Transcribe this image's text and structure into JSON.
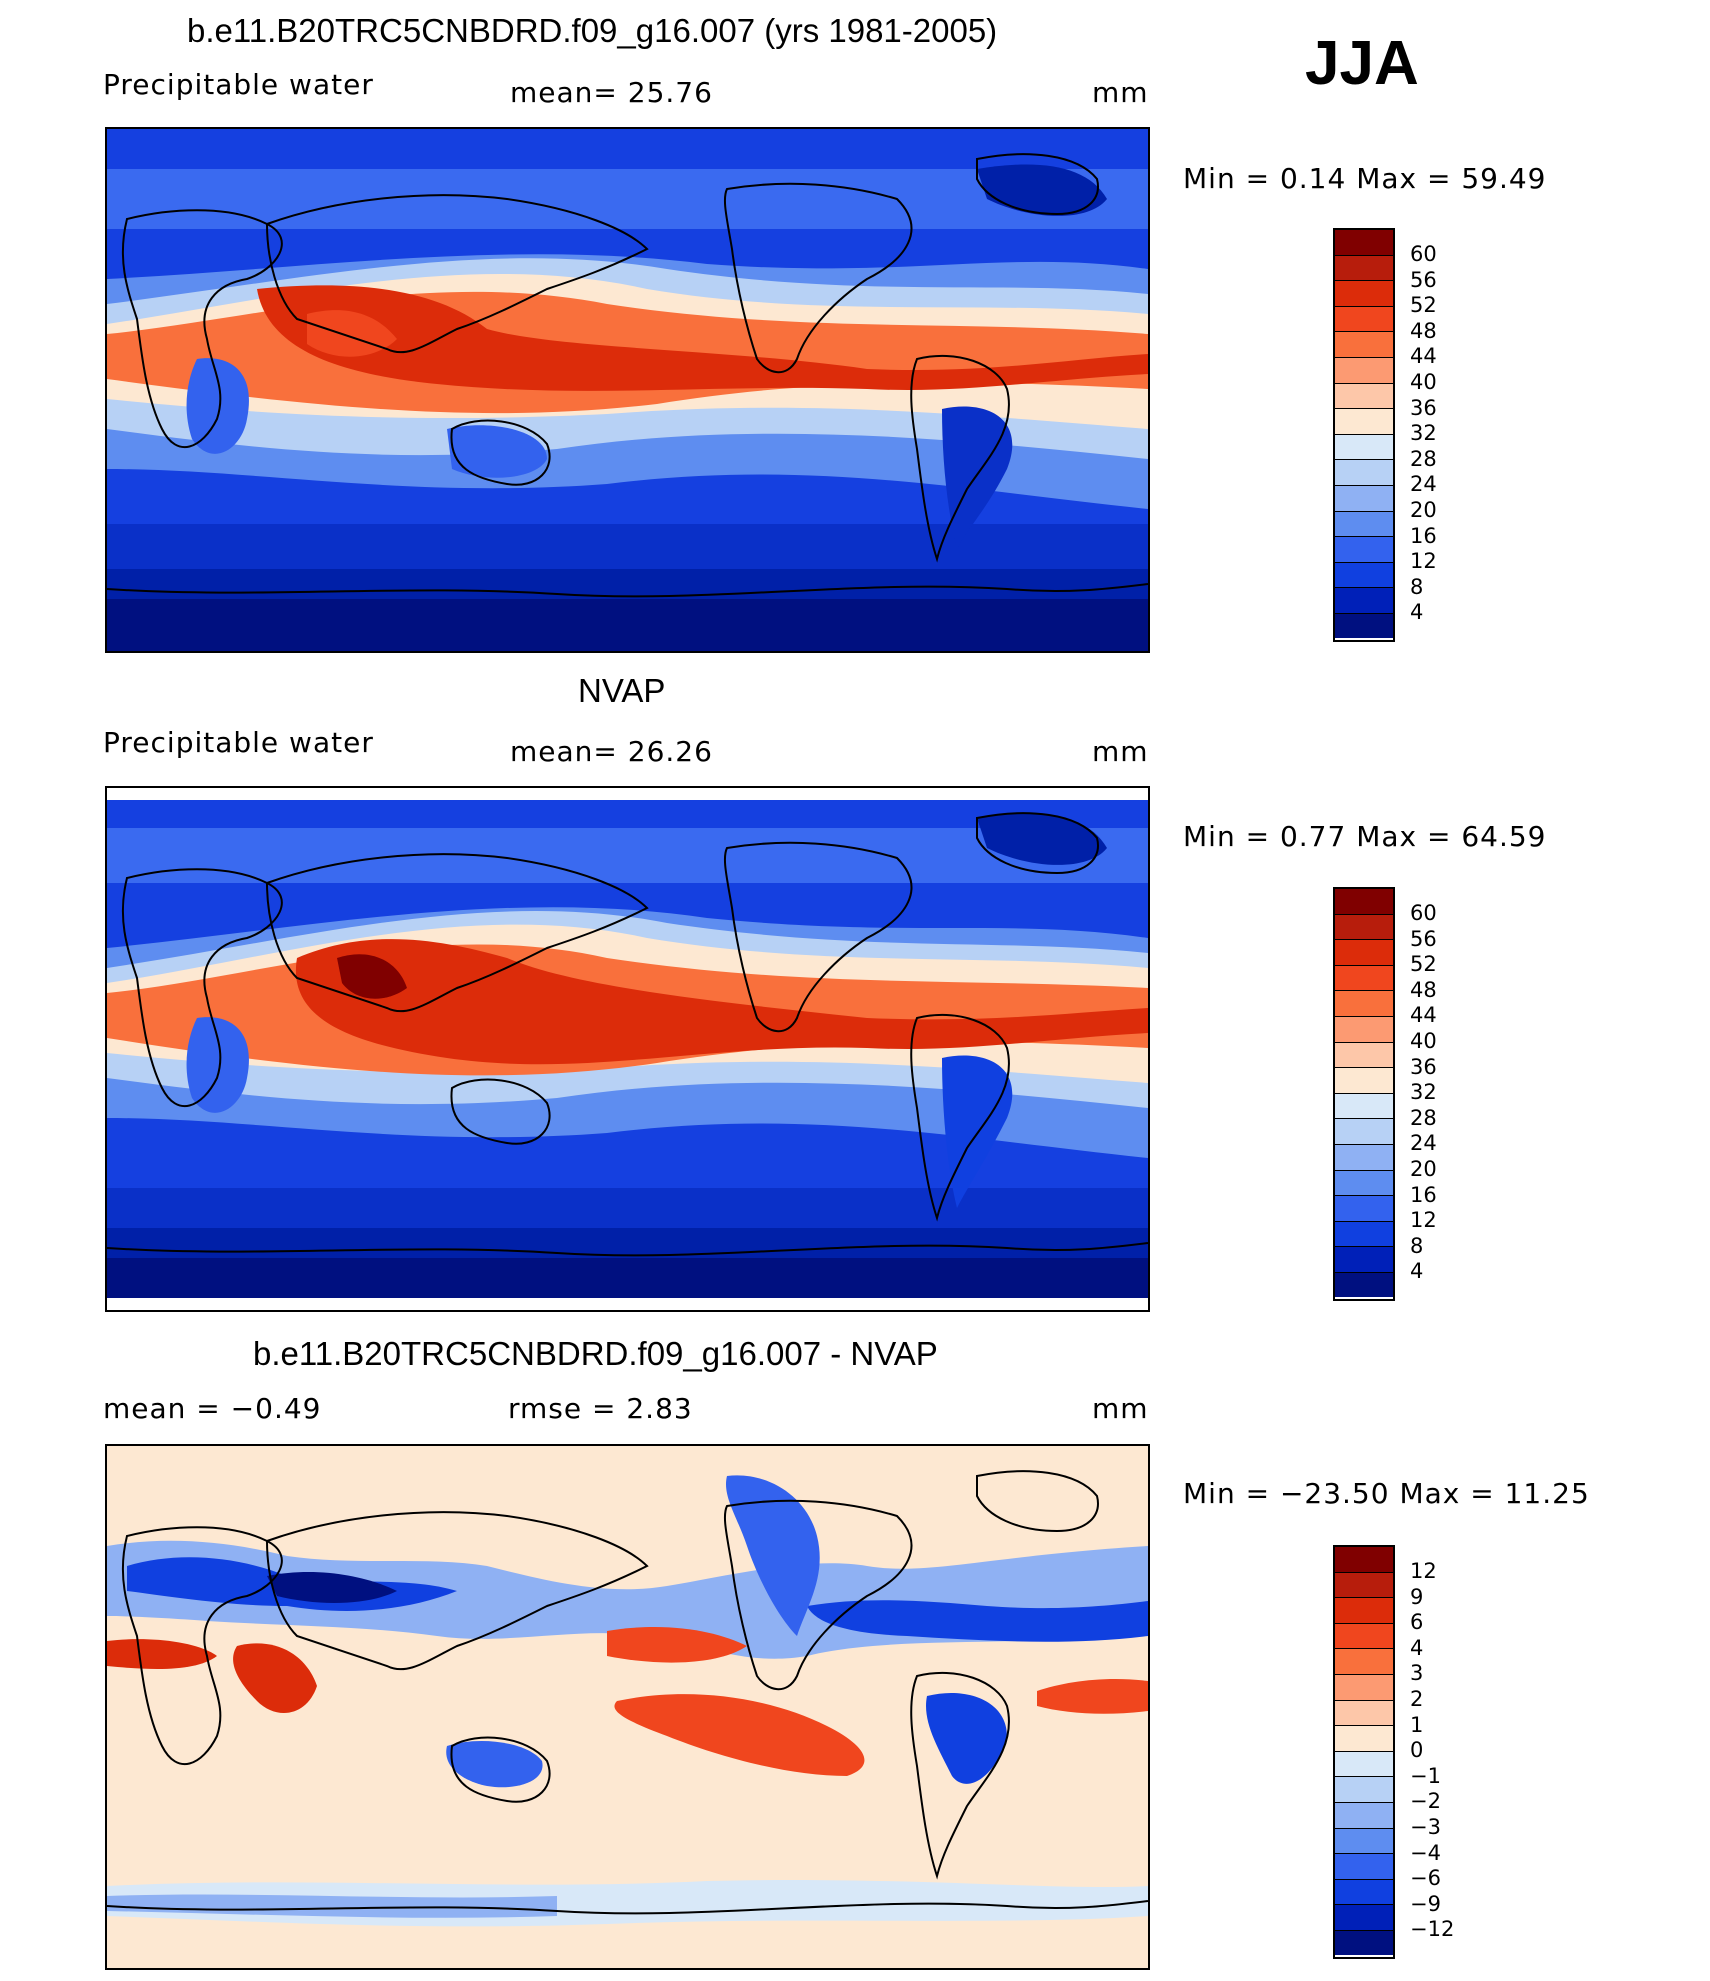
{
  "season": "JJA",
  "panels": [
    {
      "title": "b.e11.B20TRC5CNBDRD.f09_g16.007 (yrs 1981-2005)",
      "left_label": "Precipitable  water",
      "center_label": "mean=   25.76",
      "units": "mm",
      "minmax": "Min  =     0.14  Max  =    59.49",
      "colorbar_labels": [
        "60",
        "56",
        "52",
        "48",
        "44",
        "40",
        "36",
        "32",
        "28",
        "24",
        "20",
        "16",
        "12",
        "8",
        "4"
      ],
      "colors": [
        "#800000",
        "#b71d0c",
        "#dc2c0a",
        "#f0461e",
        "#f9703c",
        "#fc9a72",
        "#fdc7a9",
        "#fde8d2",
        "#d8e8f8",
        "#b7d1f5",
        "#8fb1f3",
        "#5e8df0",
        "#3362ee",
        "#1040e0",
        "#0020b8",
        "#001080"
      ]
    },
    {
      "title": "NVAP",
      "left_label": "Precipitable  water",
      "center_label": "mean=   26.26",
      "units": "mm",
      "minmax": "Min  =     0.77  Max  =    64.59",
      "colorbar_labels": [
        "60",
        "56",
        "52",
        "48",
        "44",
        "40",
        "36",
        "32",
        "28",
        "24",
        "20",
        "16",
        "12",
        "8",
        "4"
      ],
      "colors": [
        "#800000",
        "#b71d0c",
        "#dc2c0a",
        "#f0461e",
        "#f9703c",
        "#fc9a72",
        "#fdc7a9",
        "#fde8d2",
        "#d8e8f8",
        "#b7d1f5",
        "#8fb1f3",
        "#5e8df0",
        "#3362ee",
        "#1040e0",
        "#0020b8",
        "#001080"
      ]
    },
    {
      "title": "b.e11.B20TRC5CNBDRD.f09_g16.007 - NVAP",
      "left_label": "mean  =    −0.49",
      "center_label": "rmse  =     2.83",
      "units": "mm",
      "minmax": "Min  =  −23.50  Max  =    11.25",
      "colorbar_labels": [
        "12",
        "9",
        "6",
        "4",
        "3",
        "2",
        "1",
        "0",
        "−1",
        "−2",
        "−3",
        "−4",
        "−6",
        "−9",
        "−12"
      ],
      "colors": [
        "#800000",
        "#b71d0c",
        "#dc2c0a",
        "#f0461e",
        "#f9703c",
        "#fc9a72",
        "#fdc7a9",
        "#fde8d2",
        "#d8e8f8",
        "#b7d1f5",
        "#8fb1f3",
        "#5e8df0",
        "#3362ee",
        "#1040e0",
        "#0020b8",
        "#001080"
      ]
    }
  ]
}
